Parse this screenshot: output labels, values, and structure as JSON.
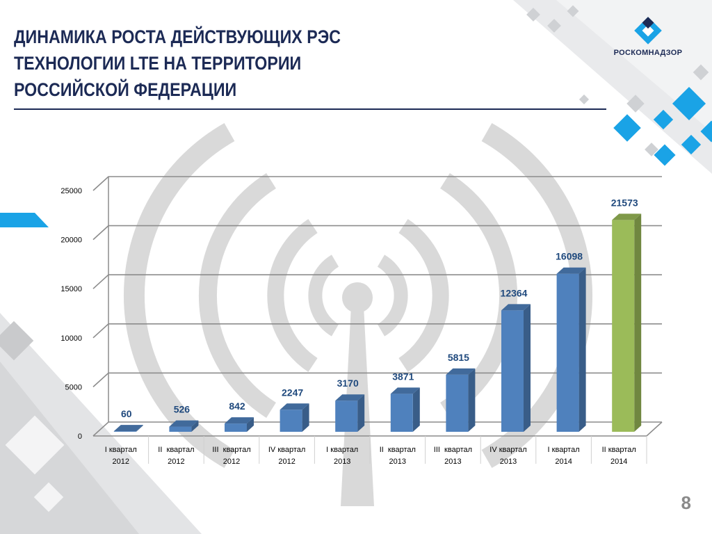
{
  "slide": {
    "title_lines": [
      "ДИНАМИКА РОСТА ДЕЙСТВУЮЩИХ РЭС",
      "ТЕХНОЛОГИИ LTE НА ТЕРРИТОРИИ",
      "РОССИЙСКОЙ ФЕДЕРАЦИИ"
    ],
    "logo_text": "РОСКОМНАДЗОР",
    "page_number": "8"
  },
  "colors": {
    "title": "#1c2a55",
    "accent_blue": "#1aa3e6",
    "bar_blue": "#4f81bd",
    "bar_green": "#9bbb59",
    "label_blue": "#1f497d",
    "watermark_gray": "#d9d9d9"
  },
  "chart_data": {
    "type": "bar",
    "title": "",
    "xlabel": "",
    "ylabel": "",
    "ylim": [
      0,
      25000
    ],
    "yticks": [
      0,
      5000,
      10000,
      15000,
      20000,
      25000
    ],
    "grid": true,
    "legend": "none",
    "categories": [
      [
        "I квартал",
        "2012"
      ],
      [
        "II  квартал",
        "2012"
      ],
      [
        "III  квартал",
        "2012"
      ],
      [
        "IV квартал",
        "2012"
      ],
      [
        "I квартал",
        "2013"
      ],
      [
        "II  квартал",
        "2013"
      ],
      [
        "III  квартал",
        "2013"
      ],
      [
        "IV квартал",
        "2013"
      ],
      [
        "I квартал",
        "2014"
      ],
      [
        "II квартал",
        "2014"
      ]
    ],
    "values": [
      60,
      526,
      842,
      2247,
      3170,
      3871,
      5815,
      12364,
      16098,
      21573
    ],
    "data_labels": [
      "60",
      "526",
      "842",
      "2247",
      "3170",
      "3871",
      "5815",
      "12364",
      "16098",
      "21573"
    ],
    "bar_colors": [
      "#4f81bd",
      "#4f81bd",
      "#4f81bd",
      "#4f81bd",
      "#4f81bd",
      "#4f81bd",
      "#4f81bd",
      "#4f81bd",
      "#4f81bd",
      "#9bbb59"
    ]
  }
}
